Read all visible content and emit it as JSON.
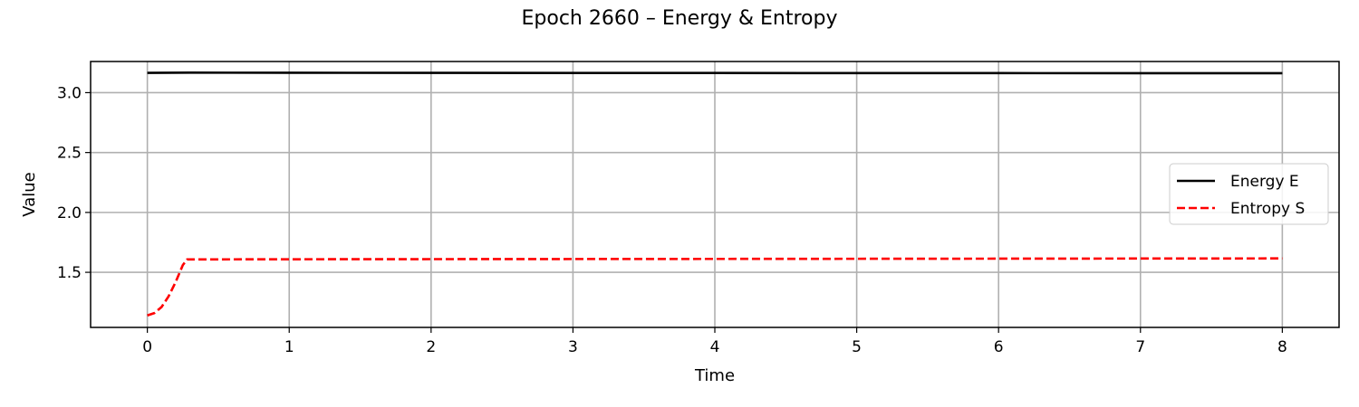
{
  "chart_data": {
    "type": "line",
    "title": "Epoch 2660 – Energy & Entropy",
    "xlabel": "Time",
    "ylabel": "Value",
    "xlim": [
      -0.4,
      8.4
    ],
    "ylim": [
      1.04,
      3.26
    ],
    "xticks": [
      0,
      1,
      2,
      3,
      4,
      5,
      6,
      7,
      8
    ],
    "yticks": [
      1.5,
      2.0,
      2.5,
      3.0
    ],
    "xtick_labels": [
      "0",
      "1",
      "2",
      "3",
      "4",
      "5",
      "6",
      "7",
      "8"
    ],
    "ytick_labels": [
      "1.5",
      "2.0",
      "2.5",
      "3.0"
    ],
    "grid": true,
    "legend_position": "center-right",
    "series": [
      {
        "name": "Energy E",
        "color": "#000000",
        "style": "solid",
        "x": [
          0,
          0.3,
          1,
          2,
          3,
          4,
          5,
          6,
          7,
          8
        ],
        "y": [
          3.165,
          3.167,
          3.166,
          3.165,
          3.164,
          3.164,
          3.163,
          3.163,
          3.162,
          3.162
        ]
      },
      {
        "name": "Entropy S",
        "color": "#ff0000",
        "style": "dashed",
        "x": [
          0,
          0.05,
          0.1,
          0.15,
          0.2,
          0.25,
          0.28,
          0.5,
          1,
          2,
          3,
          4,
          5,
          6,
          7,
          8
        ],
        "y": [
          1.14,
          1.16,
          1.21,
          1.3,
          1.42,
          1.56,
          1.608,
          1.608,
          1.609,
          1.61,
          1.611,
          1.612,
          1.613,
          1.614,
          1.615,
          1.616
        ]
      }
    ]
  }
}
